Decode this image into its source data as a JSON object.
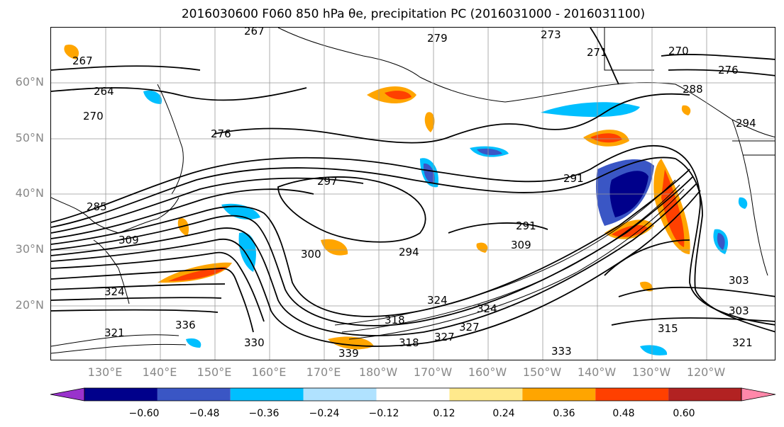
{
  "title": "2016030600 F060 850 hPa θe, precipitation PC (2016031000 - 2016031100)",
  "latitude_labels": [
    "60°N",
    "50°N",
    "40°N",
    "30°N",
    "20°N"
  ],
  "longitude_labels": [
    "130°E",
    "140°E",
    "150°E",
    "160°E",
    "170°E",
    "180°W",
    "170°W",
    "160°W",
    "150°W",
    "140°W",
    "130°W",
    "120°W"
  ],
  "colorbar": {
    "ticks": [
      "−0.60",
      "−0.48",
      "−0.36",
      "−0.24",
      "−0.12",
      "0.12",
      "0.24",
      "0.36",
      "0.48",
      "0.60"
    ],
    "colors": [
      "#9932cc",
      "#00008b",
      "#3a56c5",
      "#00bfff",
      "#b0e2ff",
      "#ffffff",
      "#ffe98c",
      "#ffa500",
      "#ff4000",
      "#b22222",
      "#ff88aa"
    ]
  },
  "contour_labels": [
    "267",
    "267",
    "264",
    "270",
    "276",
    "285",
    "309",
    "297",
    "300",
    "294",
    "291",
    "291",
    "309",
    "324",
    "318",
    "327",
    "324",
    "330",
    "339",
    "333",
    "321",
    "318",
    "321",
    "324",
    "327",
    "336",
    "303",
    "303",
    "315",
    "270",
    "276",
    "288",
    "294",
    "273",
    "271",
    "279"
  ]
}
